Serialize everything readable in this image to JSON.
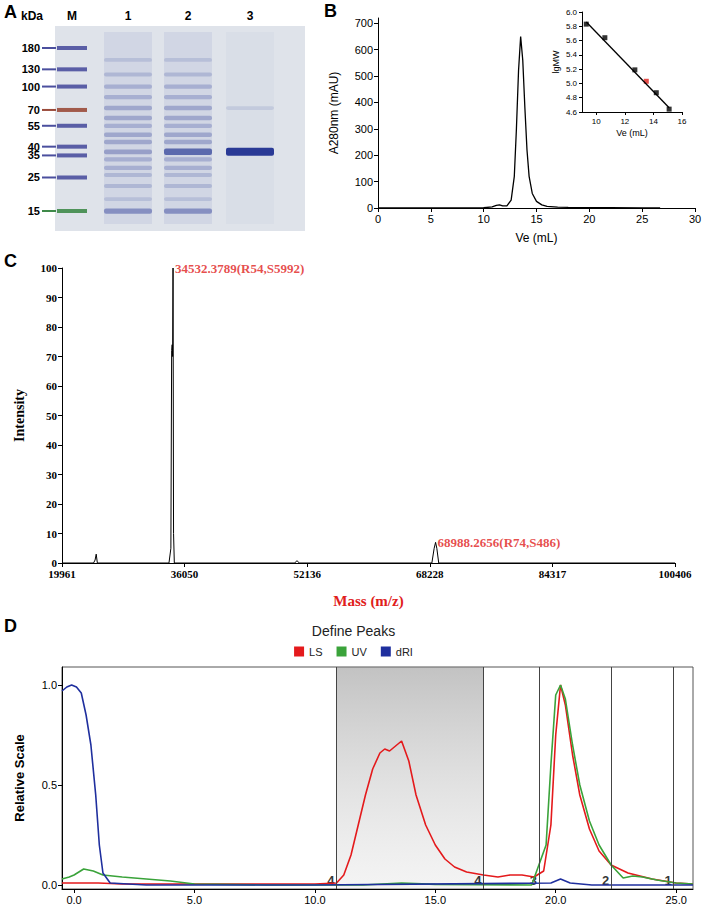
{
  "gel": {
    "panel": "A",
    "unit": "kDa",
    "lanes": [
      "M",
      "1",
      "2",
      "3"
    ],
    "ladder": [
      180,
      130,
      100,
      70,
      55,
      40,
      35,
      25,
      15
    ],
    "ladder_colors": [
      "#4b4f9e",
      "#4b4f9e",
      "#4b4f9e",
      "#9a4a3a",
      "#4b4f9e",
      "#4b4f9e",
      "#4b4f9e",
      "#4b4f9e",
      "#3f8a4a"
    ],
    "bands": [
      {
        "lane": "1",
        "kda": [
          150,
          120,
          100,
          85,
          72,
          62,
          55,
          48,
          43,
          37,
          33,
          29,
          26,
          22,
          18,
          15
        ],
        "intensity": [
          0.15,
          0.2,
          0.25,
          0.25,
          0.3,
          0.3,
          0.25,
          0.3,
          0.3,
          0.35,
          0.25,
          0.25,
          0.2,
          0.2,
          0.15,
          0.45
        ]
      },
      {
        "lane": "2",
        "kda": [
          150,
          120,
          100,
          85,
          72,
          62,
          55,
          48,
          43,
          37,
          33,
          29,
          26,
          22,
          18,
          15
        ],
        "intensity": [
          0.15,
          0.2,
          0.25,
          0.25,
          0.3,
          0.3,
          0.25,
          0.3,
          0.3,
          0.7,
          0.25,
          0.25,
          0.2,
          0.2,
          0.15,
          0.45
        ]
      },
      {
        "lane": "3",
        "kda": [
          72,
          37
        ],
        "intensity": [
          0.12,
          1.0
        ]
      }
    ]
  },
  "chart_data": [
    {
      "panel": "B",
      "type": "line",
      "x_label": "Ve (mL)",
      "y_label": "A280nm (mAU)",
      "color": "#000000",
      "grid": false,
      "x": [
        0,
        2,
        5,
        8,
        10,
        10.8,
        11.2,
        11.5,
        11.8,
        12.2,
        12.6,
        12.9,
        13.1,
        13.3,
        13.5,
        13.7,
        13.9,
        14.1,
        14.3,
        14.6,
        15,
        15.5,
        16,
        17,
        18,
        20,
        22,
        25,
        26.7
      ],
      "values": [
        0,
        0,
        0,
        0,
        1,
        4,
        10,
        12,
        8,
        8,
        30,
        120,
        300,
        520,
        650,
        560,
        380,
        220,
        120,
        55,
        25,
        12,
        6,
        3,
        2,
        1,
        1,
        0,
        0
      ],
      "xlim": [
        0,
        30
      ],
      "xticks": [
        0,
        5,
        10,
        15,
        20,
        25,
        30
      ],
      "ylim": [
        0,
        720
      ],
      "yticks": [
        0,
        100,
        200,
        300,
        400,
        500,
        600,
        700
      ]
    },
    {
      "panel": "B",
      "type": "scatter",
      "x_label": "Ve (mL)",
      "y_label": "lgMW",
      "grid": false,
      "series": [
        {
          "type": "scatter",
          "marker": "square",
          "color": "#000000",
          "x": [
            9.3,
            10.6,
            12.7,
            14.2,
            15.1
          ],
          "values": [
            5.83,
            5.64,
            5.19,
            4.87,
            4.64
          ]
        },
        {
          "type": "scatter",
          "marker": "square",
          "color": "#e0201b",
          "x": [
            13.5
          ],
          "values": [
            5.03
          ]
        },
        {
          "type": "line",
          "color": "#000000",
          "x": [
            9.3,
            15.1
          ],
          "values": [
            5.86,
            4.66
          ]
        }
      ],
      "xlim": [
        9,
        16
      ],
      "xticks": [
        10,
        12,
        14,
        16
      ],
      "ylim": [
        4.6,
        6.0
      ],
      "yticks": [
        4.6,
        4.8,
        {
          "value": 5,
          "label": "5.0"
        },
        5.2,
        5.4,
        5.6,
        5.8,
        {
          "value": 6,
          "label": "6.0"
        }
      ]
    },
    {
      "panel": "C",
      "type": "line",
      "x_label": "Mass (m/z)",
      "y_label": "Intensity",
      "color": "#000000",
      "grid": false,
      "x": [
        19961,
        24100,
        24300,
        24450,
        24600,
        34000,
        34250,
        34350,
        34420,
        34480,
        34532.3789,
        34600,
        34700,
        50500,
        50800,
        51100,
        68500,
        68800,
        68988.2656,
        69150,
        69400,
        100406
      ],
      "values": [
        0,
        0,
        1,
        3,
        0,
        0,
        5,
        72,
        74,
        70,
        100,
        10,
        0,
        0,
        0.8,
        0,
        0,
        5,
        7,
        5,
        0,
        0
      ],
      "xlim": [
        19961,
        100406
      ],
      "xticks": [
        19961,
        36050,
        52136,
        68228,
        84317,
        100406
      ],
      "ylim": [
        0,
        100
      ],
      "yticks": [
        0,
        10,
        20,
        30,
        40,
        50,
        60,
        70,
        80,
        90,
        100
      ],
      "annotations": [
        {
          "x": 34532.3789,
          "y": 100,
          "text": "34532.3789(R54,S5992)"
        },
        {
          "x": 68988.2656,
          "y": 7,
          "text": "68988.2656(R74,S486)"
        }
      ]
    },
    {
      "panel": "D",
      "type": "line",
      "title": "Define Peaks",
      "y_label": "Relative Scale",
      "legend": "top",
      "grid": false,
      "series": [
        {
          "name": "LS",
          "color": "#e41a1c",
          "x": [
            -0.5,
            0,
            1,
            2,
            5,
            8,
            10,
            10.9,
            11.2,
            11.5,
            11.8,
            12.1,
            12.4,
            12.7,
            12.9,
            13.1,
            13.3,
            13.6,
            13.9,
            14.2,
            14.6,
            15.0,
            15.4,
            15.8,
            16.3,
            17.0,
            17.6,
            18.1,
            18.6,
            19.1,
            19.5,
            19.8,
            20.0,
            20.2,
            20.4,
            20.7,
            21.0,
            21.4,
            21.8,
            22.3,
            23.0,
            24.0,
            25.0,
            25.7
          ],
          "values": [
            0.01,
            0.01,
            0.01,
            0.005,
            0.005,
            0.005,
            0.005,
            0.01,
            0.05,
            0.15,
            0.3,
            0.45,
            0.58,
            0.66,
            0.68,
            0.67,
            0.69,
            0.72,
            0.62,
            0.45,
            0.3,
            0.2,
            0.13,
            0.09,
            0.065,
            0.05,
            0.04,
            0.05,
            0.05,
            0.04,
            0.07,
            0.3,
            0.75,
            1.0,
            0.9,
            0.65,
            0.45,
            0.28,
            0.17,
            0.1,
            0.06,
            0.03,
            0.01,
            0.005
          ]
        },
        {
          "name": "UV",
          "color": "#3aa33a",
          "x": [
            -0.5,
            -0.2,
            0,
            0.4,
            0.8,
            1.2,
            2,
            3,
            4,
            5,
            8,
            12,
            13.6,
            15,
            19,
            19.6,
            19.8,
            20.0,
            20.2,
            20.4,
            20.7,
            21.0,
            21.4,
            21.8,
            22.3,
            22.8,
            23.2,
            23.6,
            24.2,
            25.0,
            25.7
          ],
          "values": [
            0.03,
            0.04,
            0.05,
            0.08,
            0.07,
            0.05,
            0.04,
            0.03,
            0.02,
            0.005,
            0,
            0,
            0.01,
            0.003,
            0,
            0.2,
            0.6,
            0.95,
            1.0,
            0.93,
            0.7,
            0.5,
            0.32,
            0.2,
            0.1,
            0.035,
            0.045,
            0.04,
            0.025,
            0.01,
            0.005
          ]
        },
        {
          "name": "dRI",
          "color": "#1f2f9e",
          "x": [
            -0.5,
            -0.3,
            -0.1,
            0.1,
            0.3,
            0.5,
            0.7,
            0.9,
            1.05,
            1.2,
            1.5,
            3,
            10,
            19.8,
            20.2,
            20.6,
            21.5,
            25.7
          ],
          "values": [
            0.97,
            0.99,
            1.0,
            0.99,
            0.96,
            0.85,
            0.7,
            0.45,
            0.2,
            0.06,
            0.01,
            0.0,
            0.0,
            0.01,
            0.03,
            0.01,
            0.0,
            0.0
          ]
        }
      ],
      "markers": [
        {
          "x": 10.9,
          "label": "4"
        },
        {
          "x": 17.0,
          "label": "4"
        },
        {
          "x": 19.3,
          "label": "3"
        },
        {
          "x": 22.3,
          "label": "2"
        },
        {
          "x": 24.9,
          "label": "1"
        }
      ],
      "highlight": [
        10.9,
        17.0
      ],
      "xlim": [
        -0.5,
        25.7
      ],
      "xticks": [
        {
          "value": 0,
          "label": "0.0"
        },
        {
          "value": 5,
          "label": "5.0"
        },
        {
          "value": 10,
          "label": "10.0"
        },
        {
          "value": 15,
          "label": "15.0"
        },
        {
          "value": 20,
          "label": "20.0"
        },
        {
          "value": 25,
          "label": "25.0"
        }
      ],
      "ylim": [
        -0.02,
        1.09
      ],
      "yticks": [
        {
          "value": 0,
          "label": "0.0"
        },
        0.5,
        {
          "value": 1,
          "label": "1.0"
        }
      ]
    }
  ]
}
